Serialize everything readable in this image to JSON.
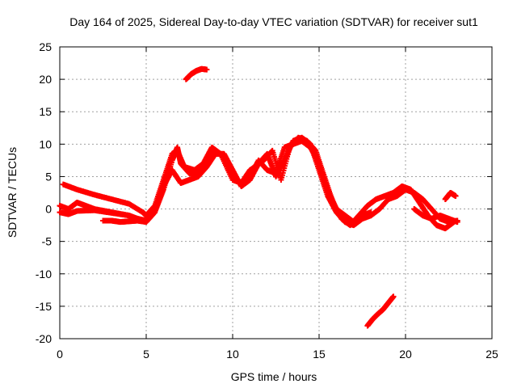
{
  "chart_data": {
    "type": "scatter",
    "title": "Day 164 of 2025, Sidereal Day-to-day VTEC variation (SDTVAR) for receiver sut1",
    "xlabel": "GPS time / hours",
    "ylabel": "SDTVAR / TECUs",
    "xlim": [
      0,
      25
    ],
    "ylim": [
      -20,
      25
    ],
    "xticks": [
      0,
      5,
      10,
      15,
      20,
      25
    ],
    "yticks": [
      -20,
      -15,
      -10,
      -5,
      0,
      5,
      10,
      15,
      20,
      25
    ],
    "xtick_labels": [
      "0",
      "5",
      "10",
      "15",
      "20",
      "25"
    ],
    "ytick_labels": [
      "-20",
      "-15",
      "-10",
      "-5",
      "0",
      "5",
      "10",
      "15",
      "20",
      "25"
    ],
    "grid": true,
    "marker": "+",
    "color": "#ff0000",
    "series": [
      {
        "name": "track-1",
        "x": [
          0.0,
          0.5,
          1.0,
          2.0,
          3.0,
          4.0,
          4.5,
          5.0,
          5.5,
          6.0,
          6.5,
          6.8,
          7.0,
          7.5,
          8.0,
          8.5,
          9.0,
          9.5,
          10.0,
          10.5,
          11.0,
          11.5,
          12.0,
          12.5,
          13.0,
          13.5,
          14.0,
          14.5,
          15.0,
          15.5,
          16.0,
          16.5,
          17.0,
          17.5,
          18.0
        ],
        "y": [
          -0.5,
          -0.8,
          -0.3,
          -0.2,
          -0.6,
          -1.0,
          -1.8,
          -2.0,
          -0.5,
          3.0,
          7.5,
          9.5,
          7.0,
          5.5,
          5.5,
          7.5,
          9.0,
          8.0,
          5.0,
          4.0,
          5.0,
          7.5,
          6.0,
          5.5,
          9.5,
          10.0,
          10.5,
          9.5,
          7.0,
          3.0,
          0.0,
          -1.0,
          -2.0,
          -1.0,
          -0.5
        ]
      },
      {
        "name": "track-2",
        "x": [
          0.0,
          0.5,
          1.0,
          1.5,
          2.0,
          3.0,
          4.0,
          4.5,
          5.0,
          5.5,
          6.0,
          6.5,
          7.0,
          7.5,
          8.0,
          8.5,
          9.0,
          9.5,
          10.0,
          10.5,
          11.0,
          11.5,
          12.0,
          12.5,
          13.0,
          13.5,
          14.0,
          14.5,
          15.0,
          15.5,
          16.0,
          16.5,
          17.0,
          17.5,
          18.0,
          18.5,
          19.0,
          19.5,
          20.0,
          20.5,
          21.0,
          21.5,
          22.0,
          22.5,
          23.0
        ],
        "y": [
          0.5,
          0.0,
          1.0,
          0.5,
          0.0,
          -0.5,
          -1.0,
          -1.5,
          -1.8,
          0.0,
          3.5,
          6.0,
          4.0,
          4.5,
          5.0,
          6.5,
          8.5,
          8.5,
          6.0,
          3.5,
          4.5,
          7.0,
          8.5,
          5.0,
          7.5,
          10.5,
          11.0,
          10.0,
          6.0,
          2.0,
          -0.5,
          -2.0,
          -2.5,
          -1.5,
          -1.0,
          0.0,
          1.5,
          2.0,
          3.0,
          2.5,
          1.5,
          0.0,
          -1.5,
          -2.0,
          -1.8
        ]
      },
      {
        "name": "track-3",
        "x": [
          0.2,
          1.0,
          2.0,
          3.0,
          4.0,
          4.8,
          5.0,
          5.5,
          6.0,
          6.5,
          6.8,
          7.2,
          7.8,
          8.3,
          8.8,
          9.3,
          10.0,
          10.5,
          11.0,
          11.8,
          12.3,
          12.8,
          13.3,
          13.8,
          14.3,
          14.8,
          15.3,
          15.8,
          16.3,
          16.8,
          17.3,
          17.8,
          18.3,
          18.8,
          19.3,
          19.8,
          20.3,
          20.8,
          21.3,
          21.8,
          22.3,
          22.8
        ],
        "y": [
          3.8,
          3.0,
          2.2,
          1.5,
          0.8,
          -0.5,
          -1.0,
          0.5,
          4.5,
          8.5,
          9.0,
          6.5,
          6.0,
          7.0,
          9.5,
          8.5,
          4.5,
          4.0,
          6.0,
          7.5,
          9.0,
          4.5,
          9.5,
          11.0,
          10.5,
          9.0,
          5.0,
          1.0,
          -1.5,
          -2.5,
          -1.0,
          0.5,
          1.5,
          2.0,
          2.5,
          3.5,
          3.0,
          1.0,
          -1.0,
          -2.5,
          -3.0,
          -2.0
        ]
      },
      {
        "name": "track-4",
        "x": [
          2.5,
          3.0,
          3.5,
          4.0,
          4.5
        ],
        "y": [
          -1.8,
          -1.8,
          -2.0,
          -1.9,
          -1.8
        ]
      },
      {
        "name": "track-5",
        "x": [
          20.5,
          21.0,
          21.5,
          22.0,
          22.5,
          23.0
        ],
        "y": [
          0.0,
          -1.0,
          -1.5,
          -1.0,
          -1.5,
          -2.0
        ]
      },
      {
        "name": "track-6",
        "x": [
          22.3,
          22.6,
          22.9
        ],
        "y": [
          1.5,
          2.5,
          2.0
        ]
      },
      {
        "name": "track-7",
        "x": [
          7.3,
          7.6,
          7.9,
          8.2,
          8.5
        ],
        "y": [
          20.0,
          20.8,
          21.3,
          21.6,
          21.5
        ]
      },
      {
        "name": "track-8",
        "x": [
          17.8,
          18.1,
          18.4,
          18.7,
          19.0,
          19.3
        ],
        "y": [
          -18.0,
          -17.0,
          -16.2,
          -15.5,
          -14.5,
          -13.5
        ]
      }
    ]
  }
}
